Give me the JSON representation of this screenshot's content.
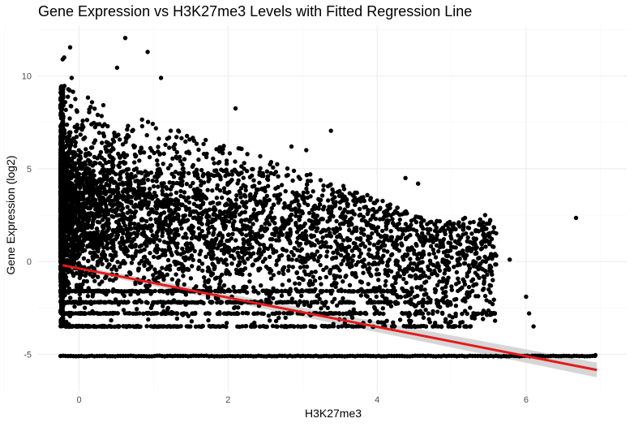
{
  "chart_data": {
    "type": "scatter",
    "title": "Gene Expression vs H3K27me3 Levels with Fitted Regression Line",
    "xlabel": "H3K27me3",
    "ylabel": "Gene Expression (log2)",
    "xlim": [
      -0.55,
      7.35
    ],
    "ylim": [
      -7.0,
      12.7
    ],
    "x_ticks": [
      0,
      2,
      4,
      6
    ],
    "x_tick_labels": [
      "0",
      "2",
      "4",
      "6"
    ],
    "y_ticks": [
      -5,
      0,
      5,
      10
    ],
    "y_tick_labels": [
      "-5",
      "0",
      "5",
      "10"
    ],
    "grid": true,
    "point_color": "#000000",
    "regression_line": {
      "color": "#e41a1c",
      "x": [
        -0.22,
        6.95
      ],
      "y": [
        -0.2,
        -5.85
      ],
      "confidence_band_color": "#cccccc",
      "ci_halfwidth_at_start": 0.12,
      "ci_halfwidth_at_end": 0.4
    },
    "floor_value": -5.1,
    "floor_x_range": [
      -0.25,
      6.95
    ],
    "noted_points": [
      {
        "x": -0.22,
        "y": 10.9
      },
      {
        "x": -0.2,
        "y": 11.0
      },
      {
        "x": -0.1,
        "y": 9.9
      },
      {
        "x": -0.12,
        "y": 11.55
      },
      {
        "x": 0.62,
        "y": 12.05
      },
      {
        "x": 0.92,
        "y": 11.3
      },
      {
        "x": 0.51,
        "y": 10.45
      },
      {
        "x": 1.1,
        "y": 9.9
      },
      {
        "x": 2.1,
        "y": 8.25
      },
      {
        "x": 3.38,
        "y": 7.05
      },
      {
        "x": 2.85,
        "y": 6.2
      },
      {
        "x": 3.05,
        "y": 6.0
      },
      {
        "x": 4.55,
        "y": 4.2
      },
      {
        "x": 4.38,
        "y": 4.5
      },
      {
        "x": 4.27,
        "y": 2.9
      },
      {
        "x": 5.18,
        "y": 2.35
      },
      {
        "x": 5.45,
        "y": 2.5
      },
      {
        "x": 6.67,
        "y": 2.35
      },
      {
        "x": 5.78,
        "y": 0.1
      },
      {
        "x": 5.55,
        "y": -2.3
      },
      {
        "x": 5.55,
        "y": -2.8
      },
      {
        "x": 6.0,
        "y": -1.9
      },
      {
        "x": 6.04,
        "y": -2.8
      },
      {
        "x": 6.1,
        "y": -3.5
      },
      {
        "x": 6.93,
        "y": -5.05
      }
    ],
    "bulk_region": {
      "x_center": 0.5,
      "y_center": 3.0,
      "x_density_peak_range": [
        -0.25,
        1.5
      ],
      "y_range": [
        -3.5,
        9.5
      ]
    }
  }
}
